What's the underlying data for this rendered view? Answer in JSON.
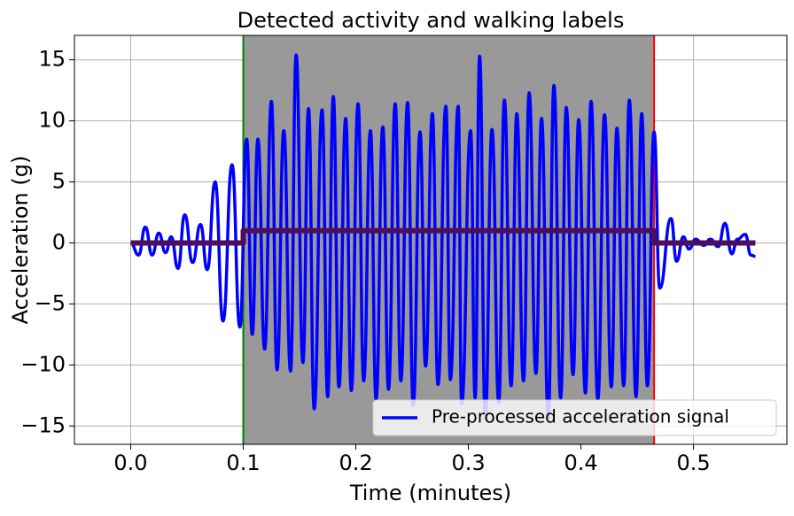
{
  "chart_data": {
    "type": "line",
    "title": "Detected activity and walking labels",
    "x_label": "Time (minutes)",
    "y_label": "Acceleration (g)",
    "xlim": [
      -0.05,
      0.583
    ],
    "ylim": [
      -16.5,
      17
    ],
    "xticks": [
      {
        "value": 0,
        "label": "0.0"
      },
      0.1,
      0.2,
      0.3,
      0.4,
      0.5
    ],
    "yticks": [
      {
        "value": -15,
        "label": "−15"
      },
      {
        "value": -10,
        "label": "−10"
      },
      {
        "value": -5,
        "label": "−5"
      },
      0,
      5,
      10,
      15
    ],
    "grid": true,
    "legend": "lower right",
    "spans": [
      {
        "xlim": [
          0.1,
          0.465
        ],
        "color": "#999999"
      }
    ],
    "vlines": [
      {
        "x": 0.1,
        "color": "#008000"
      },
      {
        "x": 0.465,
        "color": "#ff0000"
      }
    ],
    "series": [
      {
        "name": "Pre-processed acceleration signal",
        "color": "#0000ff",
        "x": [
          0.0,
          0.007,
          0.013,
          0.019,
          0.025,
          0.031,
          0.036,
          0.042,
          0.048,
          0.055,
          0.062,
          0.068,
          0.075,
          0.082,
          0.09,
          0.097,
          0.103,
          0.108,
          0.113,
          0.119,
          0.125,
          0.13,
          0.136,
          0.142,
          0.147,
          0.153,
          0.158,
          0.163,
          0.17,
          0.175,
          0.18,
          0.185,
          0.191,
          0.196,
          0.202,
          0.207,
          0.213,
          0.218,
          0.224,
          0.229,
          0.235,
          0.24,
          0.246,
          0.251,
          0.257,
          0.262,
          0.268,
          0.273,
          0.28,
          0.284,
          0.291,
          0.294,
          0.302,
          0.306,
          0.31,
          0.315,
          0.321,
          0.327,
          0.332,
          0.338,
          0.343,
          0.349,
          0.354,
          0.36,
          0.365,
          0.371,
          0.376,
          0.382,
          0.387,
          0.393,
          0.398,
          0.404,
          0.409,
          0.415,
          0.421,
          0.427,
          0.432,
          0.438,
          0.443,
          0.449,
          0.454,
          0.459,
          0.465,
          0.47,
          0.48,
          0.485,
          0.491,
          0.496,
          0.502,
          0.509,
          0.515,
          0.522,
          0.528,
          0.534,
          0.539,
          0.546,
          0.551,
          0.555
        ],
        "values": [
          0,
          -1,
          1.3,
          -1,
          0.8,
          -0.8,
          0.5,
          -2.1,
          2.3,
          -1.6,
          1.5,
          -2.2,
          5,
          -6.4,
          6.4,
          -6.9,
          8.5,
          -7.5,
          8.5,
          -8.7,
          11.6,
          -10.4,
          9.2,
          -10.5,
          15.4,
          -9.8,
          11,
          -13.6,
          10.9,
          -12.6,
          12,
          -11.8,
          10.2,
          -12.1,
          11.4,
          -11.3,
          9.2,
          -12.8,
          9.5,
          -12,
          11.4,
          -11.3,
          11.5,
          -13.3,
          9.1,
          -10.1,
          10.6,
          -11.6,
          11.2,
          -11.2,
          11.2,
          -13.2,
          9.2,
          -12.7,
          15.3,
          -14.3,
          9.3,
          -13.1,
          11.7,
          -11.7,
          10.6,
          -11.3,
          12.3,
          -10.7,
          10.2,
          -14.3,
          12.9,
          -12.7,
          11.1,
          -10.8,
          10.1,
          -12.3,
          11.6,
          -12.8,
          10.5,
          -11.8,
          9.4,
          -11.7,
          11.7,
          -12.6,
          10.6,
          -11.7,
          9.1,
          -3.7,
          2,
          -1.5,
          0.5,
          -0.5,
          0.3,
          -0.2,
          0.3,
          -0.3,
          1.6,
          -0.9,
          0.3,
          0.7,
          -1,
          -1.1
        ]
      },
      {
        "color": "#4b0f5c",
        "x": [
          0,
          0.1,
          0.1,
          0.465,
          0.465,
          0.555
        ],
        "values": [
          0,
          0,
          1,
          1,
          0,
          0
        ]
      }
    ]
  }
}
